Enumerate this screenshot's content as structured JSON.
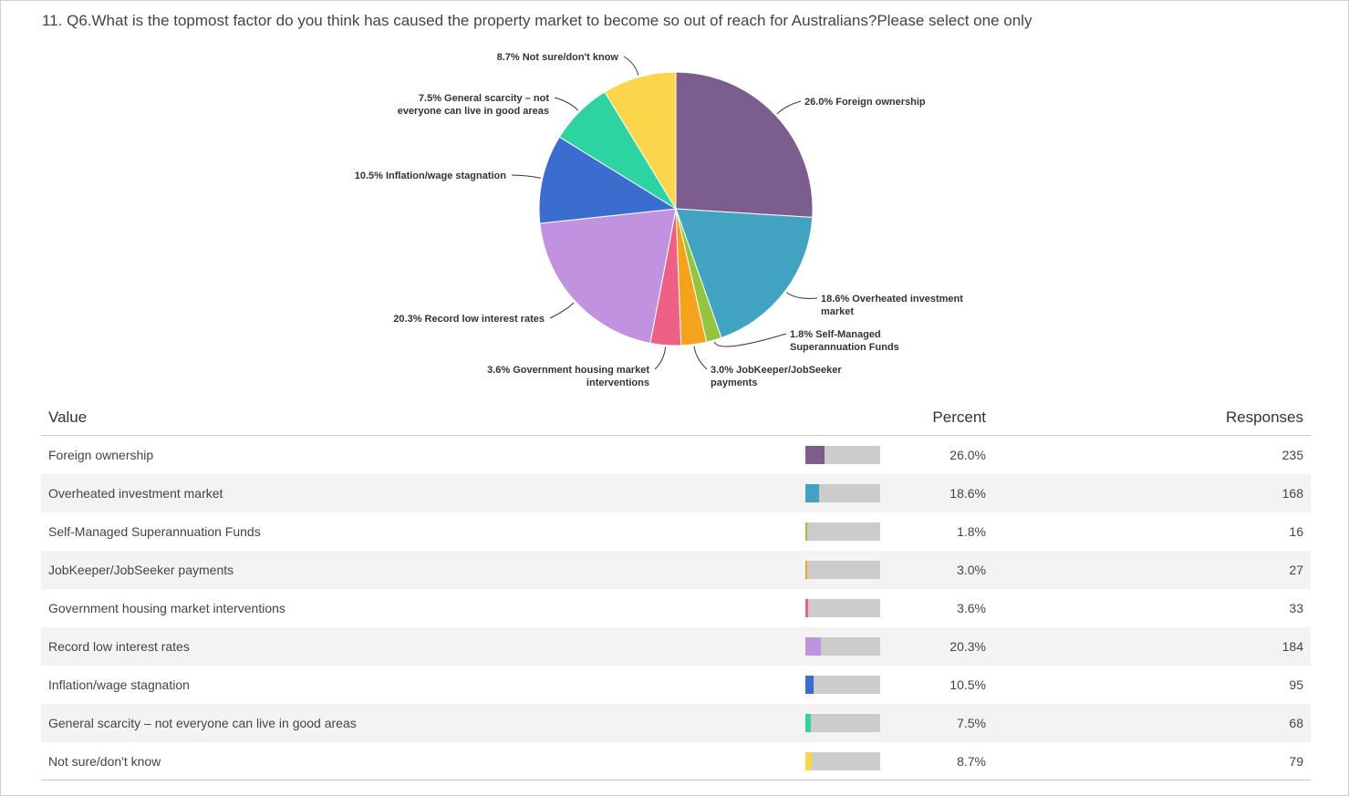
{
  "title": "11. Q6.What is the topmost factor do you think has caused the property market to become so out of reach for Australians?Please select one only",
  "table_headers": {
    "value": "Value",
    "percent": "Percent",
    "responses": "Responses"
  },
  "chart_data": {
    "type": "pie",
    "title": "11. Q6.What is the topmost factor do you think has caused the property market to become so out of reach for Australians?Please select one only",
    "slices": [
      {
        "label": "Foreign ownership",
        "percent": 26.0,
        "percent_text": "26.0%",
        "responses": 235,
        "color": "#7b5e8e",
        "chart_label": [
          "26.0% Foreign ownership"
        ]
      },
      {
        "label": "Overheated investment market",
        "percent": 18.6,
        "percent_text": "18.6%",
        "responses": 168,
        "color": "#41a2c2",
        "chart_label": [
          "18.6% Overheated investment",
          "market"
        ]
      },
      {
        "label": "Self-Managed Superannuation Funds",
        "percent": 1.8,
        "percent_text": "1.8%",
        "responses": 16,
        "color": "#93c63e",
        "chart_label": [
          "1.8% Self-Managed",
          "Superannuation Funds"
        ]
      },
      {
        "label": "JobKeeper/JobSeeker payments",
        "percent": 3.0,
        "percent_text": "3.0%",
        "responses": 27,
        "color": "#f5a21c",
        "chart_label": [
          "3.0% JobKeeper/JobSeeker",
          "payments"
        ]
      },
      {
        "label": "Government housing market interventions",
        "percent": 3.6,
        "percent_text": "3.6%",
        "responses": 33,
        "color": "#ef6086",
        "chart_label": [
          "3.6% Government housing market",
          "interventions"
        ]
      },
      {
        "label": "Record low interest rates",
        "percent": 20.3,
        "percent_text": "20.3%",
        "responses": 184,
        "color": "#c092df",
        "chart_label": [
          "20.3% Record low interest rates"
        ]
      },
      {
        "label": "Inflation/wage stagnation",
        "percent": 10.5,
        "percent_text": "10.5%",
        "responses": 95,
        "color": "#3b6dce",
        "chart_label": [
          "10.5% Inflation/wage stagnation"
        ]
      },
      {
        "label": "General scarcity – not everyone can live in good areas",
        "percent": 7.5,
        "percent_text": "7.5%",
        "responses": 68,
        "color": "#2ed3a2",
        "chart_label": [
          "7.5% General scarcity – not",
          "everyone can live in good areas"
        ]
      },
      {
        "label": "Not sure/don't know",
        "percent": 8.7,
        "percent_text": "8.7%",
        "responses": 79,
        "color": "#fdd54a",
        "chart_label": [
          "8.7% Not sure/don't know"
        ]
      }
    ]
  }
}
